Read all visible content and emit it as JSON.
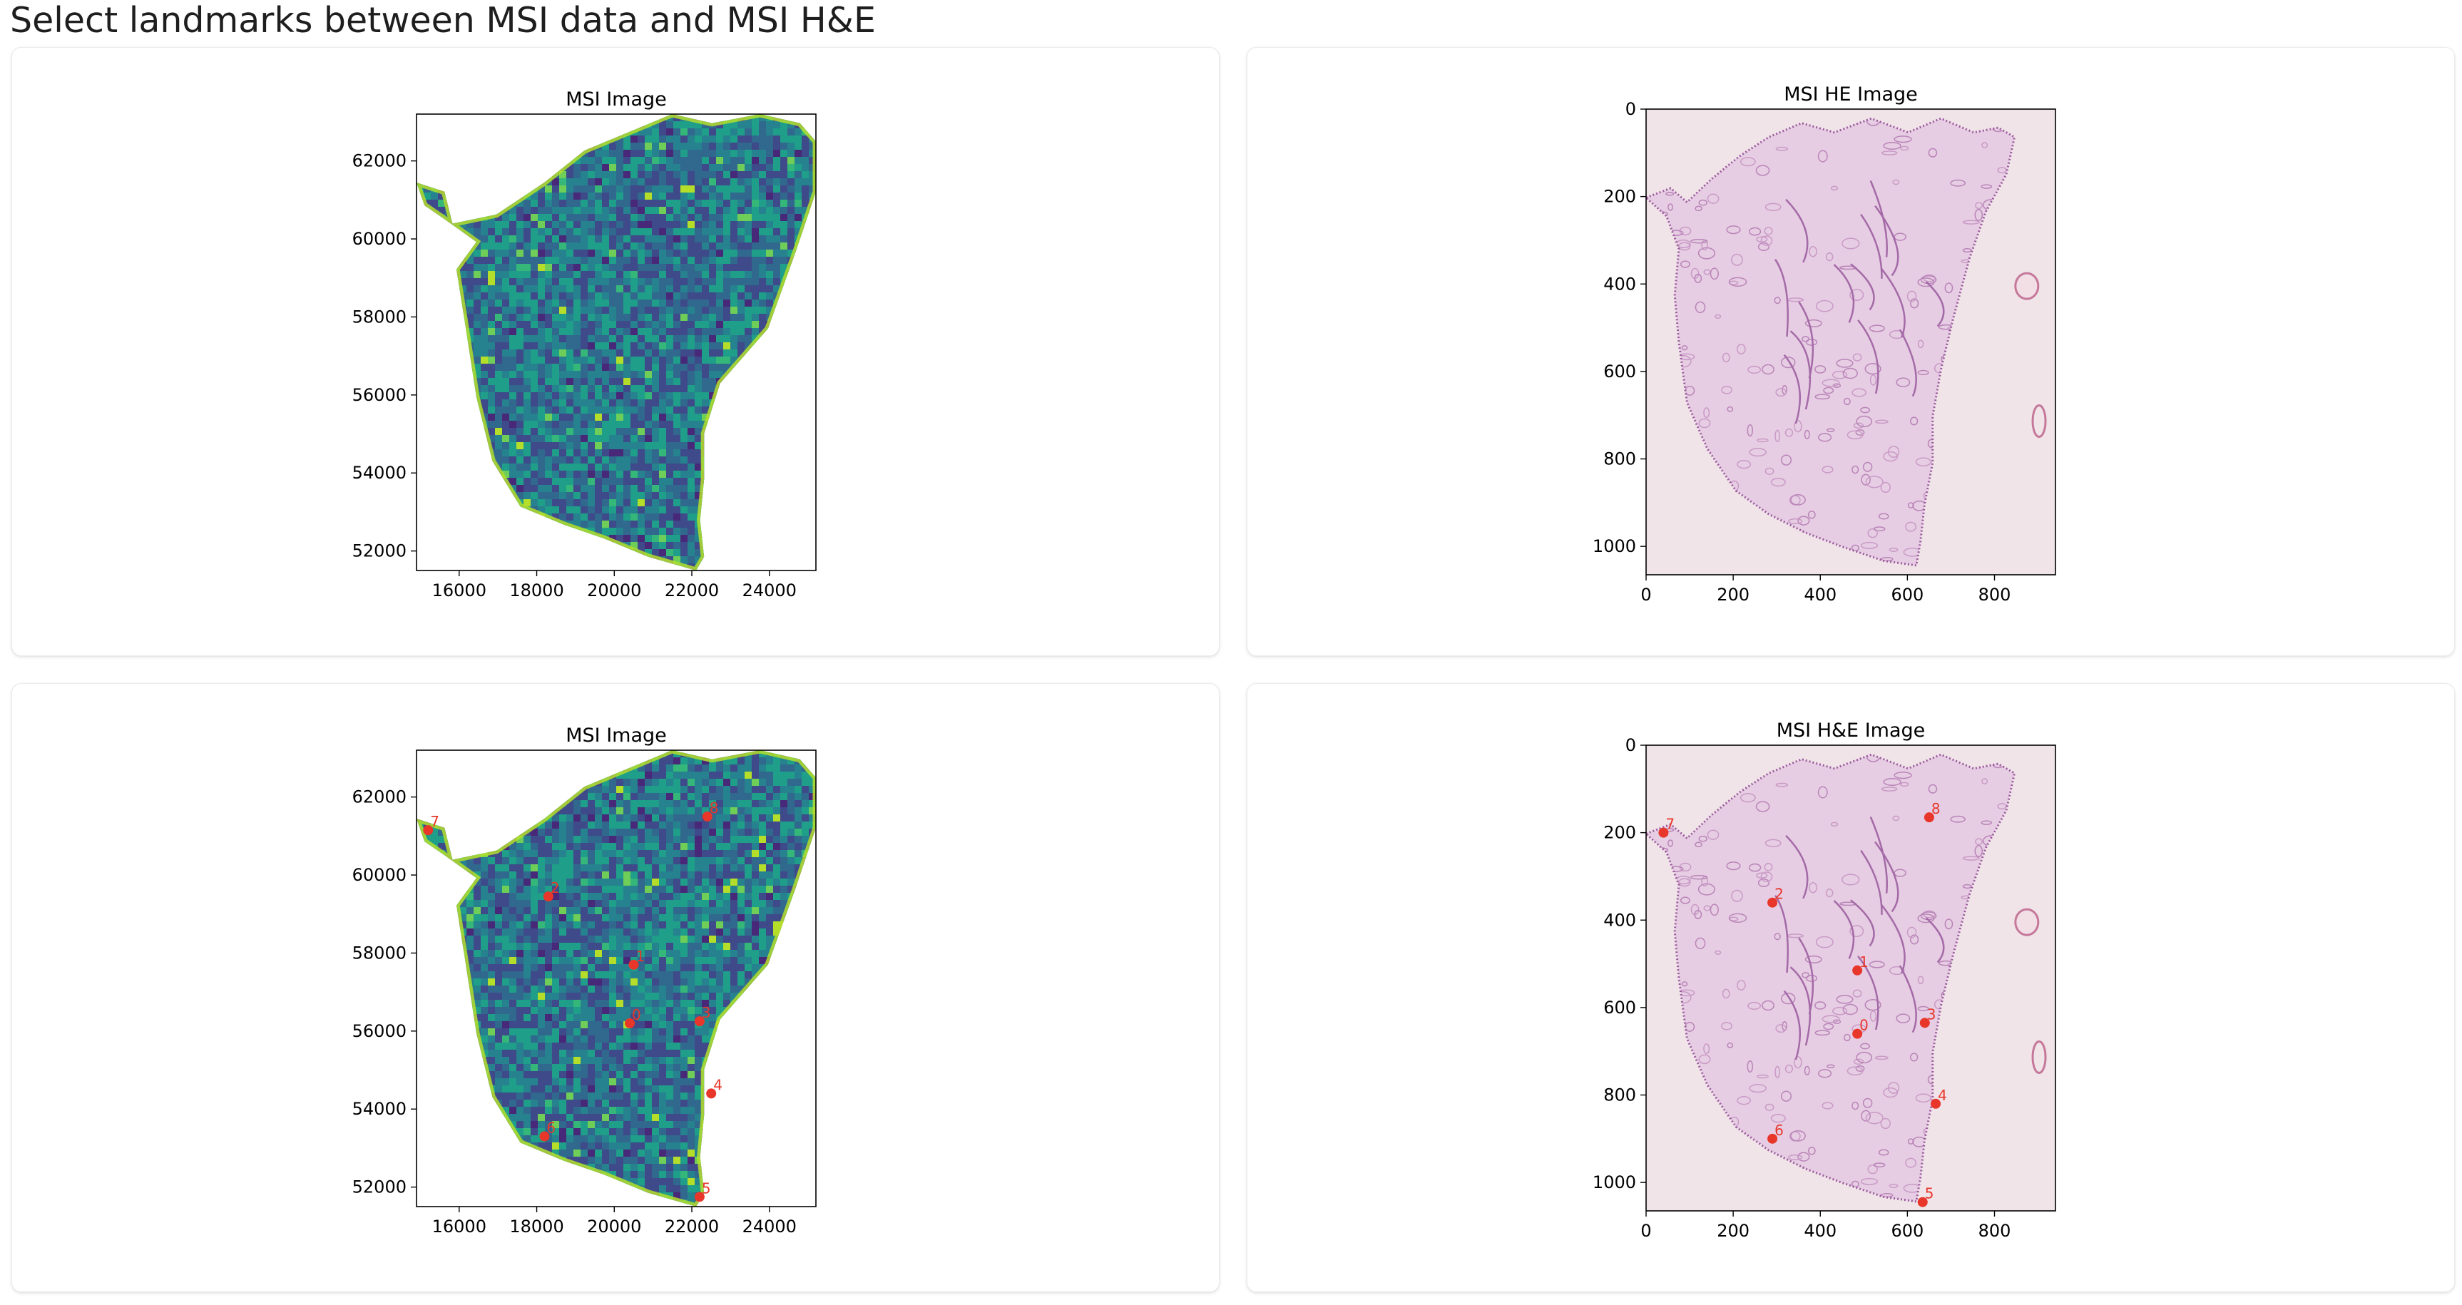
{
  "page": {
    "title": "Select landmarks between MSI data and MSI H&E"
  },
  "colors": {
    "landmark": "#e8372a",
    "he_tissue": "#c99ac6",
    "he_background": "#f0e4e8"
  },
  "chart_data": [
    {
      "id": "msi-top",
      "type": "heatmap",
      "title": "MSI Image",
      "colormap": "viridis",
      "xlim": [
        14900,
        25200
      ],
      "ylim": [
        51500,
        63200
      ],
      "y_inverted": false,
      "xticks": [
        16000,
        18000,
        20000,
        22000,
        24000
      ],
      "yticks": [
        52000,
        54000,
        56000,
        58000,
        60000,
        62000
      ],
      "landmarks": []
    },
    {
      "id": "he-top",
      "type": "heatmap",
      "title": "MSI HE Image",
      "colormap": "H&E",
      "xlim": [
        0,
        940
      ],
      "ylim": [
        1065,
        0
      ],
      "y_inverted": true,
      "xticks": [
        0,
        200,
        400,
        600,
        800
      ],
      "yticks": [
        0,
        200,
        400,
        600,
        800,
        1000
      ],
      "landmarks": []
    },
    {
      "id": "msi-bottom",
      "type": "scatter",
      "title": "MSI Image",
      "colormap": "viridis",
      "xlim": [
        14900,
        25200
      ],
      "ylim": [
        51500,
        63200
      ],
      "y_inverted": false,
      "xticks": [
        16000,
        18000,
        20000,
        22000,
        24000
      ],
      "yticks": [
        52000,
        54000,
        56000,
        58000,
        60000,
        62000
      ],
      "landmarks": [
        {
          "label": "0",
          "x": 20400,
          "y": 56200
        },
        {
          "label": "1",
          "x": 20500,
          "y": 57700
        },
        {
          "label": "2",
          "x": 18300,
          "y": 59450
        },
        {
          "label": "3",
          "x": 22200,
          "y": 56250
        },
        {
          "label": "4",
          "x": 22500,
          "y": 54400
        },
        {
          "label": "5",
          "x": 22200,
          "y": 51750
        },
        {
          "label": "6",
          "x": 18200,
          "y": 53300
        },
        {
          "label": "7",
          "x": 15200,
          "y": 61150
        },
        {
          "label": "8",
          "x": 22400,
          "y": 61500
        }
      ]
    },
    {
      "id": "he-bottom",
      "type": "scatter",
      "title": "MSI H&E Image",
      "colormap": "H&E",
      "xlim": [
        0,
        940
      ],
      "ylim": [
        1065,
        0
      ],
      "y_inverted": true,
      "xticks": [
        0,
        200,
        400,
        600,
        800
      ],
      "yticks": [
        0,
        200,
        400,
        600,
        800,
        1000
      ],
      "landmarks": [
        {
          "label": "0",
          "x": 485,
          "y": 660
        },
        {
          "label": "1",
          "x": 485,
          "y": 515
        },
        {
          "label": "2",
          "x": 290,
          "y": 360
        },
        {
          "label": "3",
          "x": 640,
          "y": 635
        },
        {
          "label": "4",
          "x": 665,
          "y": 820
        },
        {
          "label": "5",
          "x": 635,
          "y": 1045
        },
        {
          "label": "6",
          "x": 290,
          "y": 900
        },
        {
          "label": "7",
          "x": 40,
          "y": 200
        },
        {
          "label": "8",
          "x": 650,
          "y": 165
        }
      ]
    }
  ]
}
